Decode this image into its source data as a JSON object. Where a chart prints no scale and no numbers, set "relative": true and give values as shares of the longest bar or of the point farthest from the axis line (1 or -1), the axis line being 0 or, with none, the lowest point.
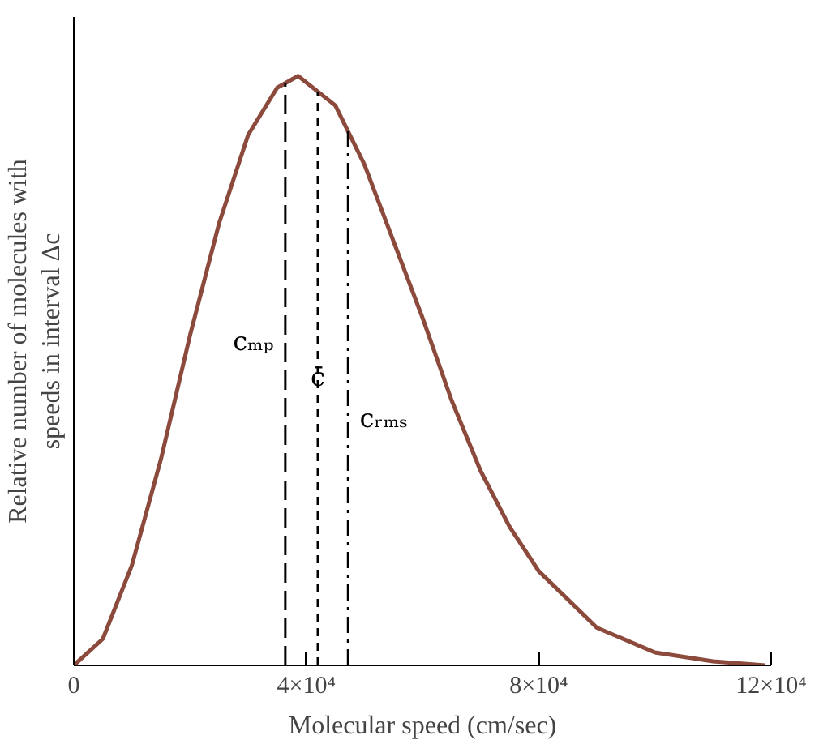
{
  "chart_data": {
    "type": "line",
    "relative": true,
    "xlabel": "Molecular speed (cm/sec)",
    "ylabel": "Relative number of molecules with\nspeeds in interval Δc",
    "x": [
      0,
      5000,
      10000,
      15000,
      20000,
      25000,
      30000,
      35000,
      38600,
      45000,
      50000,
      55000,
      60000,
      65000,
      70000,
      75000,
      80000,
      90000,
      100000,
      110000,
      119000
    ],
    "series": [
      {
        "color": "#8b4a3c",
        "values": [
          0,
          0.045,
          0.17,
          0.35,
          0.56,
          0.75,
          0.9,
          0.98,
          1,
          0.95,
          0.85,
          0.72,
          0.59,
          0.45,
          0.33,
          0.235,
          0.16,
          0.064,
          0.022,
          0.007,
          0
        ]
      }
    ],
    "xlim": [
      0,
      120000
    ],
    "xticks": [
      0,
      {
        "value": 40000,
        "label": "4×10⁴"
      },
      {
        "value": 80000,
        "label": "8×10⁴"
      },
      {
        "value": 120000,
        "label": "12×10⁴"
      }
    ],
    "ref_lines": [
      {
        "axis": "x",
        "value": 36400,
        "label": "cₘₚ",
        "line_style": "dashed"
      },
      {
        "axis": "x",
        "value": 42000,
        "label": "c̄",
        "line_style": "dotted"
      },
      {
        "axis": "x",
        "value": 47200,
        "label": "cᵣₘₛ",
        "line_style": "dashdot"
      }
    ],
    "grid": false,
    "marker": "none",
    "line_style": "solid"
  }
}
